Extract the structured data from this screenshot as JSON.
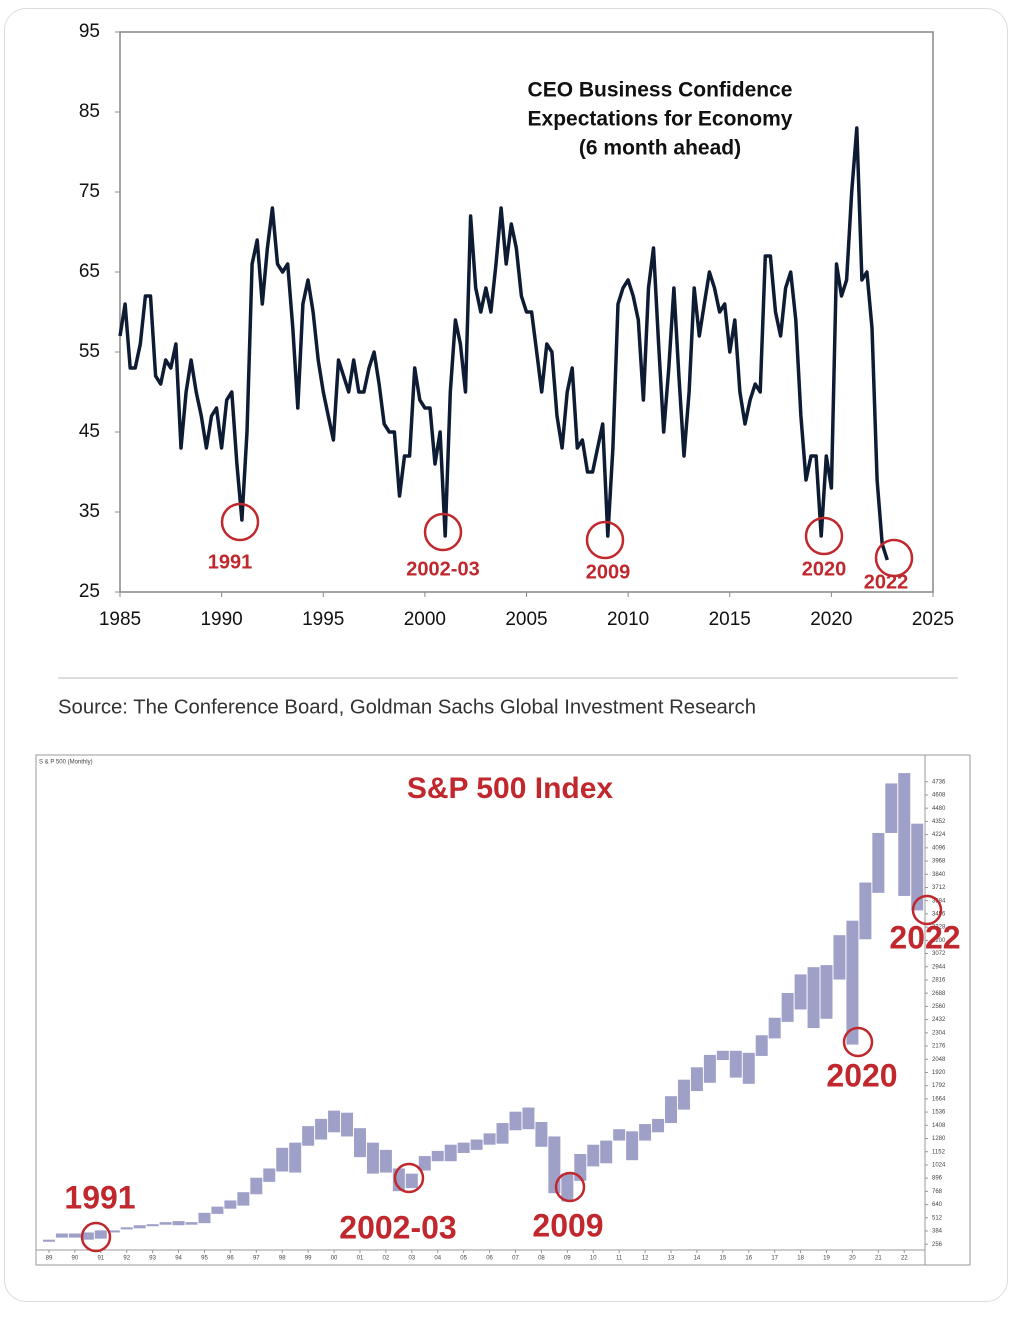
{
  "chart_data": [
    {
      "type": "line",
      "title": [
        "CEO Business Confidence",
        "Expectations for Economy",
        "(6 month ahead)"
      ],
      "source": "Source: The Conference Board, Goldman Sachs Global Investment Research",
      "color": "#0d1b33",
      "xlim": [
        1985,
        2025
      ],
      "xticks": [
        1985,
        1990,
        1995,
        2000,
        2005,
        2010,
        2015,
        2020,
        2025
      ],
      "ylim": [
        25,
        95
      ],
      "yticks": [
        25,
        35,
        45,
        55,
        65,
        75,
        85,
        95
      ],
      "annotations": [
        "1991",
        "2002-03",
        "2009",
        "2020",
        "2022"
      ],
      "annotation_color": "#c0282d",
      "x": [
        1985,
        1985.25,
        1985.5,
        1985.75,
        1986,
        1986.25,
        1986.5,
        1986.75,
        1987,
        1987.25,
        1987.5,
        1987.75,
        1988,
        1988.25,
        1988.5,
        1988.75,
        1989,
        1989.25,
        1989.5,
        1989.75,
        1990,
        1990.25,
        1990.5,
        1990.75,
        1991,
        1991.25,
        1991.5,
        1991.75,
        1992,
        1992.25,
        1992.5,
        1992.75,
        1993,
        1993.25,
        1993.5,
        1993.75,
        1994,
        1994.25,
        1994.5,
        1994.75,
        1995,
        1995.25,
        1995.5,
        1995.75,
        1996,
        1996.25,
        1996.5,
        1996.75,
        1997,
        1997.25,
        1997.5,
        1997.75,
        1998,
        1998.25,
        1998.5,
        1998.75,
        1999,
        1999.25,
        1999.5,
        1999.75,
        2000,
        2000.25,
        2000.5,
        2000.75,
        2001,
        2001.25,
        2001.5,
        2001.75,
        2002,
        2002.25,
        2002.5,
        2002.75,
        2003,
        2003.25,
        2003.5,
        2003.75,
        2004,
        2004.25,
        2004.5,
        2004.75,
        2005,
        2005.25,
        2005.5,
        2005.75,
        2006,
        2006.25,
        2006.5,
        2006.75,
        2007,
        2007.25,
        2007.5,
        2007.75,
        2008,
        2008.25,
        2008.5,
        2008.75,
        2009,
        2009.25,
        2009.5,
        2009.75,
        2010,
        2010.25,
        2010.5,
        2010.75,
        2011,
        2011.25,
        2011.5,
        2011.75,
        2012,
        2012.25,
        2012.5,
        2012.75,
        2013,
        2013.25,
        2013.5,
        2013.75,
        2014,
        2014.25,
        2014.5,
        2014.75,
        2015,
        2015.25,
        2015.5,
        2015.75,
        2016,
        2016.25,
        2016.5,
        2016.75,
        2017,
        2017.25,
        2017.5,
        2017.75,
        2018,
        2018.25,
        2018.5,
        2018.75,
        2019,
        2019.25,
        2019.5,
        2019.75,
        2020,
        2020.25,
        2020.5,
        2020.75,
        2021,
        2021.25,
        2021.5,
        2021.75,
        2022,
        2022.25,
        2022.5,
        2022.75
      ],
      "values": [
        57,
        61,
        53,
        53,
        56,
        62,
        62,
        52,
        51,
        54,
        53,
        56,
        43,
        50,
        54,
        50,
        47,
        43,
        47,
        48,
        43,
        49,
        50,
        41,
        34,
        45,
        66,
        69,
        61,
        68,
        73,
        66,
        65,
        66,
        58,
        48,
        61,
        64,
        60,
        54,
        50,
        47,
        44,
        54,
        52,
        50,
        54,
        50,
        50,
        53,
        55,
        51,
        46,
        45,
        45,
        37,
        42,
        42,
        53,
        49,
        48,
        48,
        41,
        45,
        32,
        50,
        59,
        56,
        50,
        72,
        63,
        60,
        63,
        60,
        66,
        73,
        66,
        71,
        68,
        62,
        60,
        60,
        55,
        50,
        56,
        55,
        47,
        43,
        50,
        53,
        43,
        44,
        40,
        40,
        43,
        46,
        32,
        43,
        61,
        63,
        64,
        62,
        59,
        49,
        63,
        68,
        56,
        45,
        53,
        63,
        52,
        42,
        50,
        63,
        57,
        61,
        65,
        63,
        60,
        61,
        55,
        59,
        50,
        46,
        49,
        51,
        50,
        67,
        67,
        60,
        57,
        63,
        65,
        59,
        47,
        39,
        42,
        42,
        32,
        42,
        38,
        66,
        62,
        64,
        75,
        83,
        64,
        65,
        58,
        39,
        31,
        29
      ]
    },
    {
      "type": "range_bar",
      "title": "S&P 500 Index",
      "subtitle": "S & P 500 (Monthly)",
      "color": "#7d80b5",
      "title_color": "#c0282d",
      "xlim": [
        1988.5,
        2022.8
      ],
      "xticks": [
        {
          "value": 1989,
          "label": "89"
        },
        {
          "value": 1990,
          "label": "90"
        },
        {
          "value": 1991,
          "label": "91"
        },
        {
          "value": 1992,
          "label": "92"
        },
        {
          "value": 1993,
          "label": "93"
        },
        {
          "value": 1994,
          "label": "94"
        },
        {
          "value": 1995,
          "label": "95"
        },
        {
          "value": 1996,
          "label": "96"
        },
        {
          "value": 1997,
          "label": "97"
        },
        {
          "value": 1998,
          "label": "98"
        },
        {
          "value": 1999,
          "label": "99"
        },
        {
          "value": 2000,
          "label": "00"
        },
        {
          "value": 2001,
          "label": "01"
        },
        {
          "value": 2002,
          "label": "02"
        },
        {
          "value": 2003,
          "label": "03"
        },
        {
          "value": 2004,
          "label": "04"
        },
        {
          "value": 2005,
          "label": "05"
        },
        {
          "value": 2006,
          "label": "06"
        },
        {
          "value": 2007,
          "label": "07"
        },
        {
          "value": 2008,
          "label": "08"
        },
        {
          "value": 2009,
          "label": "09"
        },
        {
          "value": 2010,
          "label": "10"
        },
        {
          "value": 2011,
          "label": "11"
        },
        {
          "value": 2012,
          "label": "12"
        },
        {
          "value": 2013,
          "label": "13"
        },
        {
          "value": 2014,
          "label": "14"
        },
        {
          "value": 2015,
          "label": "15"
        },
        {
          "value": 2016,
          "label": "16"
        },
        {
          "value": 2017,
          "label": "17"
        },
        {
          "value": 2018,
          "label": "18"
        },
        {
          "value": 2019,
          "label": "19"
        },
        {
          "value": 2020,
          "label": "20"
        },
        {
          "value": 2021,
          "label": "21"
        },
        {
          "value": 2022,
          "label": "22"
        }
      ],
      "ylim": [
        200,
        4850
      ],
      "yticks": [
        256,
        384,
        512,
        640,
        768,
        896,
        1024,
        1152,
        1280,
        1408,
        1536,
        1664,
        1792,
        1920,
        2048,
        2176,
        2304,
        2432,
        2560,
        2688,
        2816,
        2944,
        3072,
        3200,
        3328,
        3456,
        3584,
        3712,
        3840,
        3968,
        4096,
        4224,
        4352,
        4480,
        4608,
        4736
      ],
      "annotations": [
        "1991",
        "2002-03",
        "2009",
        "2020",
        "2022"
      ],
      "annotation_color": "#c0282d",
      "x": [
        1989,
        1989.5,
        1990,
        1990.5,
        1991,
        1991.5,
        1992,
        1992.5,
        1993,
        1993.5,
        1994,
        1994.5,
        1995,
        1995.5,
        1996,
        1996.5,
        1997,
        1997.5,
        1998,
        1998.5,
        1999,
        1999.5,
        2000,
        2000.5,
        2001,
        2001.5,
        2002,
        2002.5,
        2003,
        2003.5,
        2004,
        2004.5,
        2005,
        2005.5,
        2006,
        2006.5,
        2007,
        2007.5,
        2008,
        2008.5,
        2009,
        2009.5,
        2010,
        2010.5,
        2011,
        2011.5,
        2012,
        2012.5,
        2013,
        2013.5,
        2014,
        2014.5,
        2015,
        2015.5,
        2016,
        2016.5,
        2017,
        2017.5,
        2018,
        2018.5,
        2019,
        2019.5,
        2020,
        2020.5,
        2021,
        2021.5,
        2022,
        2022.5
      ],
      "high": [
        300,
        360,
        360,
        370,
        390,
        390,
        420,
        440,
        450,
        470,
        480,
        470,
        560,
        620,
        680,
        760,
        900,
        990,
        1190,
        1240,
        1400,
        1470,
        1550,
        1530,
        1380,
        1240,
        1170,
        990,
        940,
        1110,
        1160,
        1220,
        1240,
        1270,
        1330,
        1430,
        1540,
        1580,
        1440,
        1300,
        940,
        1130,
        1220,
        1260,
        1370,
        1350,
        1420,
        1470,
        1690,
        1850,
        1970,
        2090,
        2130,
        2130,
        2110,
        2280,
        2450,
        2690,
        2870,
        2940,
        2960,
        3250,
        3390,
        3760,
        4240,
        4720,
        4820,
        4330
      ],
      "low": [
        280,
        320,
        320,
        300,
        310,
        370,
        400,
        410,
        430,
        445,
        440,
        445,
        460,
        550,
        600,
        630,
        740,
        860,
        960,
        950,
        1210,
        1270,
        1340,
        1300,
        1100,
        940,
        950,
        770,
        800,
        970,
        1060,
        1060,
        1140,
        1170,
        1220,
        1230,
        1360,
        1370,
        1200,
        750,
        670,
        870,
        1010,
        1040,
        1260,
        1070,
        1260,
        1340,
        1430,
        1560,
        1740,
        1820,
        2040,
        1870,
        1810,
        2080,
        2250,
        2410,
        2530,
        2350,
        2440,
        2820,
        2190,
        3210,
        3660,
        4240,
        3630,
        3490
      ]
    }
  ]
}
